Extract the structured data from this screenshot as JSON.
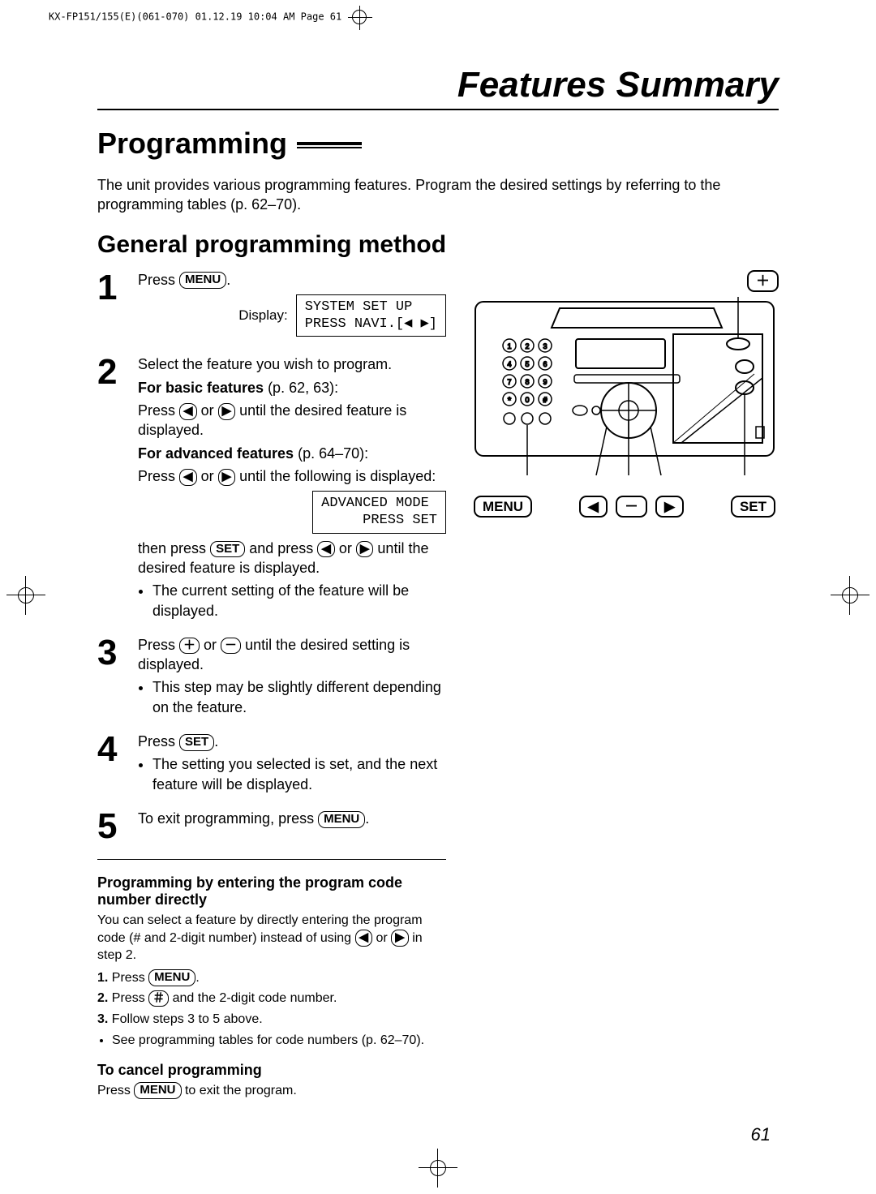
{
  "print_header": "KX-FP151/155(E)(061-070)  01.12.19 10:04 AM  Page 61",
  "title": "Features Summary",
  "h1": "Programming",
  "intro": "The unit provides various programming features. Program the desired settings by referring to the programming tables (p. 62–70).",
  "h2": "General programming method",
  "buttons": {
    "menu": "MENU",
    "set": "SET",
    "left": "◀",
    "right": "▶",
    "plus": "＋",
    "minus": "－",
    "hash": "＃"
  },
  "steps": [
    {
      "n": "1",
      "lines": [
        {
          "t": "Press ",
          "btn": "menu",
          "after": "."
        }
      ],
      "display_label": "Display:",
      "display": "SYSTEM SET UP\nPRESS NAVI.[◀ ▶]"
    },
    {
      "n": "2",
      "lines": [
        {
          "t": "Select the feature you wish to program."
        },
        {
          "bold": "For basic features",
          "after": " (p. 62, 63):"
        },
        {
          "t": "Press ",
          "btn": "left",
          "mid": " or ",
          "btn2": "right",
          "after": " until the desired feature is displayed."
        },
        {
          "bold": "For advanced features",
          "after": " (p. 64–70):"
        },
        {
          "t": "Press ",
          "btn": "left",
          "mid": " or ",
          "btn2": "right",
          "after": " until the following is displayed:"
        }
      ],
      "display": "ADVANCED MODE\n     PRESS SET",
      "tail": [
        {
          "t": "then press ",
          "btn": "set",
          "mid": " and press ",
          "btn2": "left",
          "mid2": " or ",
          "btn3": "right",
          "after": " until the desired feature is displayed."
        }
      ],
      "bullets": [
        "The current setting of the feature will be displayed."
      ]
    },
    {
      "n": "3",
      "lines": [
        {
          "t": "Press ",
          "btn": "plus",
          "mid": " or ",
          "btn2": "minus",
          "after": " until the desired setting is displayed."
        }
      ],
      "bullets": [
        "This step may be slightly different depending on the feature."
      ]
    },
    {
      "n": "4",
      "lines": [
        {
          "t": "Press ",
          "btn": "set",
          "after": "."
        }
      ],
      "bullets": [
        "The setting you selected is set, and the next feature will be displayed."
      ]
    },
    {
      "n": "5",
      "lines": [
        {
          "t": "To exit programming, press ",
          "btn": "menu",
          "after": "."
        }
      ]
    }
  ],
  "direct": {
    "heading": "Programming by entering the program code number directly",
    "intro_a": "You can select a feature by directly entering the program code (# and 2-digit number) instead of using ",
    "intro_b": " or ",
    "intro_c": " in step 2.",
    "items": [
      {
        "n": "1.",
        "t": "Press ",
        "btn": "menu",
        "after": "."
      },
      {
        "n": "2.",
        "t": "Press ",
        "btn": "hash",
        "after": " and the 2-digit code number."
      },
      {
        "n": "3.",
        "t": "Follow steps 3 to 5 above."
      }
    ],
    "note": "See programming tables for code numbers (p. 62–70)."
  },
  "cancel": {
    "heading": "To cancel programming",
    "text_a": "Press ",
    "text_b": " to exit the program."
  },
  "device_labels": {
    "menu": "MENU",
    "set": "SET",
    "left": "◀",
    "right": "▶",
    "plus": "＋",
    "minus": "－"
  },
  "page_number": "61"
}
